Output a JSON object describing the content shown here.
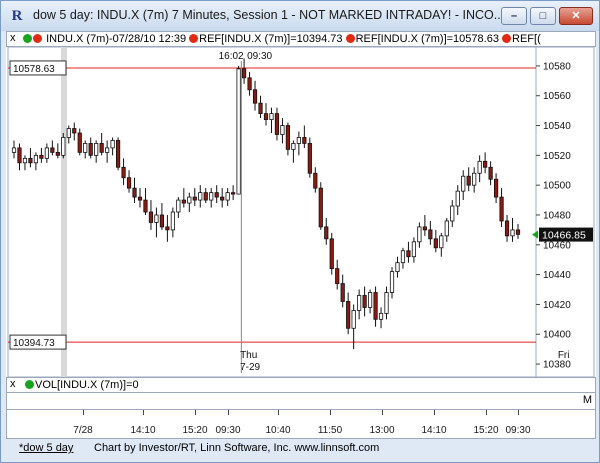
{
  "window": {
    "title": "dow 5 day: INDU.X (7m) 7 Minutes, Session 1 - NOT MARKED INTRADAY! - INCO...",
    "minimize": "–",
    "maximize": "□",
    "close": "✕"
  },
  "legend": {
    "close_x": "x",
    "symbol": "INDU.X (7m)-07/28/10 12:39",
    "ref1": "REF[INDU.X (7m)]=10394.73",
    "ref2": "REF[INDU.X (7m)]=10578.63",
    "trailing": "REF[("
  },
  "chart_data": {
    "type": "candlestick",
    "y_ticks": [
      10580,
      10560,
      10540,
      10520,
      10500,
      10480,
      10460,
      10440,
      10420,
      10400,
      10380
    ],
    "ylim": [
      10374,
      10590
    ],
    "reference_lines": [
      {
        "label": "10578.63",
        "value": 10578.63,
        "color": "#e02020"
      },
      {
        "label": "10394.73",
        "value": 10394.73,
        "color": "#e02020"
      }
    ],
    "last_price": {
      "label": "10466.85",
      "value": 10466.85
    },
    "session_markers": [
      {
        "label": "16:02",
        "index": 41
      },
      {
        "label": "09:30",
        "index": 42
      }
    ],
    "day_labels": [
      {
        "label": "Thu",
        "sub": "7-29",
        "index": 42
      },
      {
        "label": "Fri",
        "sub": "",
        "index": 100
      }
    ],
    "candles": [
      [
        10522,
        10530,
        10518,
        10525
      ],
      [
        10525,
        10528,
        10510,
        10515
      ],
      [
        10515,
        10520,
        10510,
        10518
      ],
      [
        10518,
        10525,
        10512,
        10515
      ],
      [
        10515,
        10522,
        10510,
        10520
      ],
      [
        10520,
        10525,
        10515,
        10518
      ],
      [
        10518,
        10528,
        10515,
        10525
      ],
      [
        10525,
        10530,
        10520,
        10522
      ],
      [
        10522,
        10528,
        10518,
        10520
      ],
      [
        10520,
        10535,
        10518,
        10532
      ],
      [
        10532,
        10540,
        10528,
        10538
      ],
      [
        10538,
        10542,
        10530,
        10535
      ],
      [
        10535,
        10538,
        10520,
        10522
      ],
      [
        10522,
        10530,
        10518,
        10528
      ],
      [
        10528,
        10532,
        10518,
        10520
      ],
      [
        10520,
        10530,
        10515,
        10528
      ],
      [
        10528,
        10535,
        10520,
        10522
      ],
      [
        10522,
        10530,
        10515,
        10525
      ],
      [
        10525,
        10532,
        10520,
        10530
      ],
      [
        10530,
        10532,
        10510,
        10512
      ],
      [
        10512,
        10518,
        10500,
        10505
      ],
      [
        10505,
        10510,
        10495,
        10498
      ],
      [
        10498,
        10505,
        10488,
        10492
      ],
      [
        10492,
        10498,
        10485,
        10490
      ],
      [
        10490,
        10498,
        10480,
        10482
      ],
      [
        10482,
        10490,
        10470,
        10475
      ],
      [
        10475,
        10485,
        10465,
        10480
      ],
      [
        10480,
        10488,
        10470,
        10472
      ],
      [
        10472,
        10480,
        10462,
        10470
      ],
      [
        10470,
        10485,
        10465,
        10482
      ],
      [
        10482,
        10492,
        10478,
        10490
      ],
      [
        10490,
        10498,
        10485,
        10488
      ],
      [
        10488,
        10495,
        10482,
        10492
      ],
      [
        10492,
        10498,
        10486,
        10490
      ],
      [
        10490,
        10500,
        10485,
        10495
      ],
      [
        10495,
        10498,
        10488,
        10490
      ],
      [
        10490,
        10498,
        10485,
        10495
      ],
      [
        10495,
        10500,
        10488,
        10492
      ],
      [
        10492,
        10498,
        10485,
        10490
      ],
      [
        10490,
        10498,
        10486,
        10495
      ],
      [
        10495,
        10500,
        10490,
        10494
      ],
      [
        10494,
        10580,
        10494,
        10578
      ],
      [
        10578,
        10585,
        10568,
        10572
      ],
      [
        10572,
        10576,
        10560,
        10564
      ],
      [
        10564,
        10570,
        10550,
        10555
      ],
      [
        10555,
        10560,
        10545,
        10548
      ],
      [
        10548,
        10555,
        10540,
        10544
      ],
      [
        10544,
        10552,
        10535,
        10548
      ],
      [
        10548,
        10552,
        10530,
        10534
      ],
      [
        10534,
        10545,
        10528,
        10540
      ],
      [
        10540,
        10542,
        10520,
        10524
      ],
      [
        10524,
        10530,
        10515,
        10528
      ],
      [
        10528,
        10536,
        10520,
        10532
      ],
      [
        10532,
        10540,
        10525,
        10528
      ],
      [
        10528,
        10532,
        10505,
        10508
      ],
      [
        10508,
        10512,
        10495,
        10498
      ],
      [
        10498,
        10502,
        10470,
        10472
      ],
      [
        10472,
        10478,
        10460,
        10464
      ],
      [
        10464,
        10468,
        10440,
        10444
      ],
      [
        10444,
        10450,
        10430,
        10434
      ],
      [
        10434,
        10440,
        10418,
        10422
      ],
      [
        10422,
        10428,
        10400,
        10404
      ],
      [
        10404,
        10420,
        10390,
        10416
      ],
      [
        10416,
        10430,
        10410,
        10426
      ],
      [
        10426,
        10432,
        10412,
        10418
      ],
      [
        10418,
        10430,
        10414,
        10428
      ],
      [
        10428,
        10432,
        10405,
        10410
      ],
      [
        10410,
        10418,
        10404,
        10414
      ],
      [
        10414,
        10432,
        10410,
        10428
      ],
      [
        10428,
        10445,
        10424,
        10442
      ],
      [
        10442,
        10452,
        10438,
        10448
      ],
      [
        10448,
        10458,
        10444,
        10456
      ],
      [
        10456,
        10462,
        10448,
        10452
      ],
      [
        10452,
        10465,
        10448,
        10462
      ],
      [
        10462,
        10475,
        10458,
        10472
      ],
      [
        10472,
        10480,
        10466,
        10470
      ],
      [
        10470,
        10476,
        10460,
        10464
      ],
      [
        10464,
        10470,
        10455,
        10458
      ],
      [
        10458,
        10468,
        10452,
        10466
      ],
      [
        10466,
        10478,
        10462,
        10476
      ],
      [
        10476,
        10490,
        10472,
        10486
      ],
      [
        10486,
        10500,
        10480,
        10496
      ],
      [
        10496,
        10510,
        10490,
        10506
      ],
      [
        10506,
        10512,
        10496,
        10500
      ],
      [
        10500,
        10512,
        10495,
        10508
      ],
      [
        10508,
        10520,
        10502,
        10516
      ],
      [
        10516,
        10522,
        10508,
        10512
      ],
      [
        10512,
        10516,
        10500,
        10504
      ],
      [
        10504,
        10508,
        10488,
        10492
      ],
      [
        10492,
        10498,
        10472,
        10476
      ],
      [
        10476,
        10480,
        10462,
        10466
      ],
      [
        10466,
        10478,
        10462,
        10470
      ],
      [
        10470,
        10474,
        10464,
        10467
      ]
    ]
  },
  "volume": {
    "close_x": "x",
    "label": "VOL[INDU.X (7m)]=0",
    "scale_letter": "M"
  },
  "time_axis": [
    {
      "label": "7/28",
      "x": 81
    },
    {
      "label": "14:10",
      "x": 141
    },
    {
      "label": "15:20",
      "x": 193
    },
    {
      "label": "09:30",
      "x": 226
    },
    {
      "label": "10:40",
      "x": 276
    },
    {
      "label": "11:50",
      "x": 328
    },
    {
      "label": "13:00",
      "x": 380
    },
    {
      "label": "14:10",
      "x": 432
    },
    {
      "label": "15:20",
      "x": 484
    },
    {
      "label": "09:30",
      "x": 516
    }
  ],
  "status": {
    "tab": "*dow 5 day",
    "credit": "Chart by Investor/RT, Linn Software, Inc. www.linnsoft.com"
  },
  "colors": {
    "up": "#ffffff",
    "down": "#8b1a12",
    "ref_line": "#e02020",
    "last_marker": "#1aa31a",
    "green_dot": "#19a31f",
    "red_dot": "#e02b12"
  }
}
